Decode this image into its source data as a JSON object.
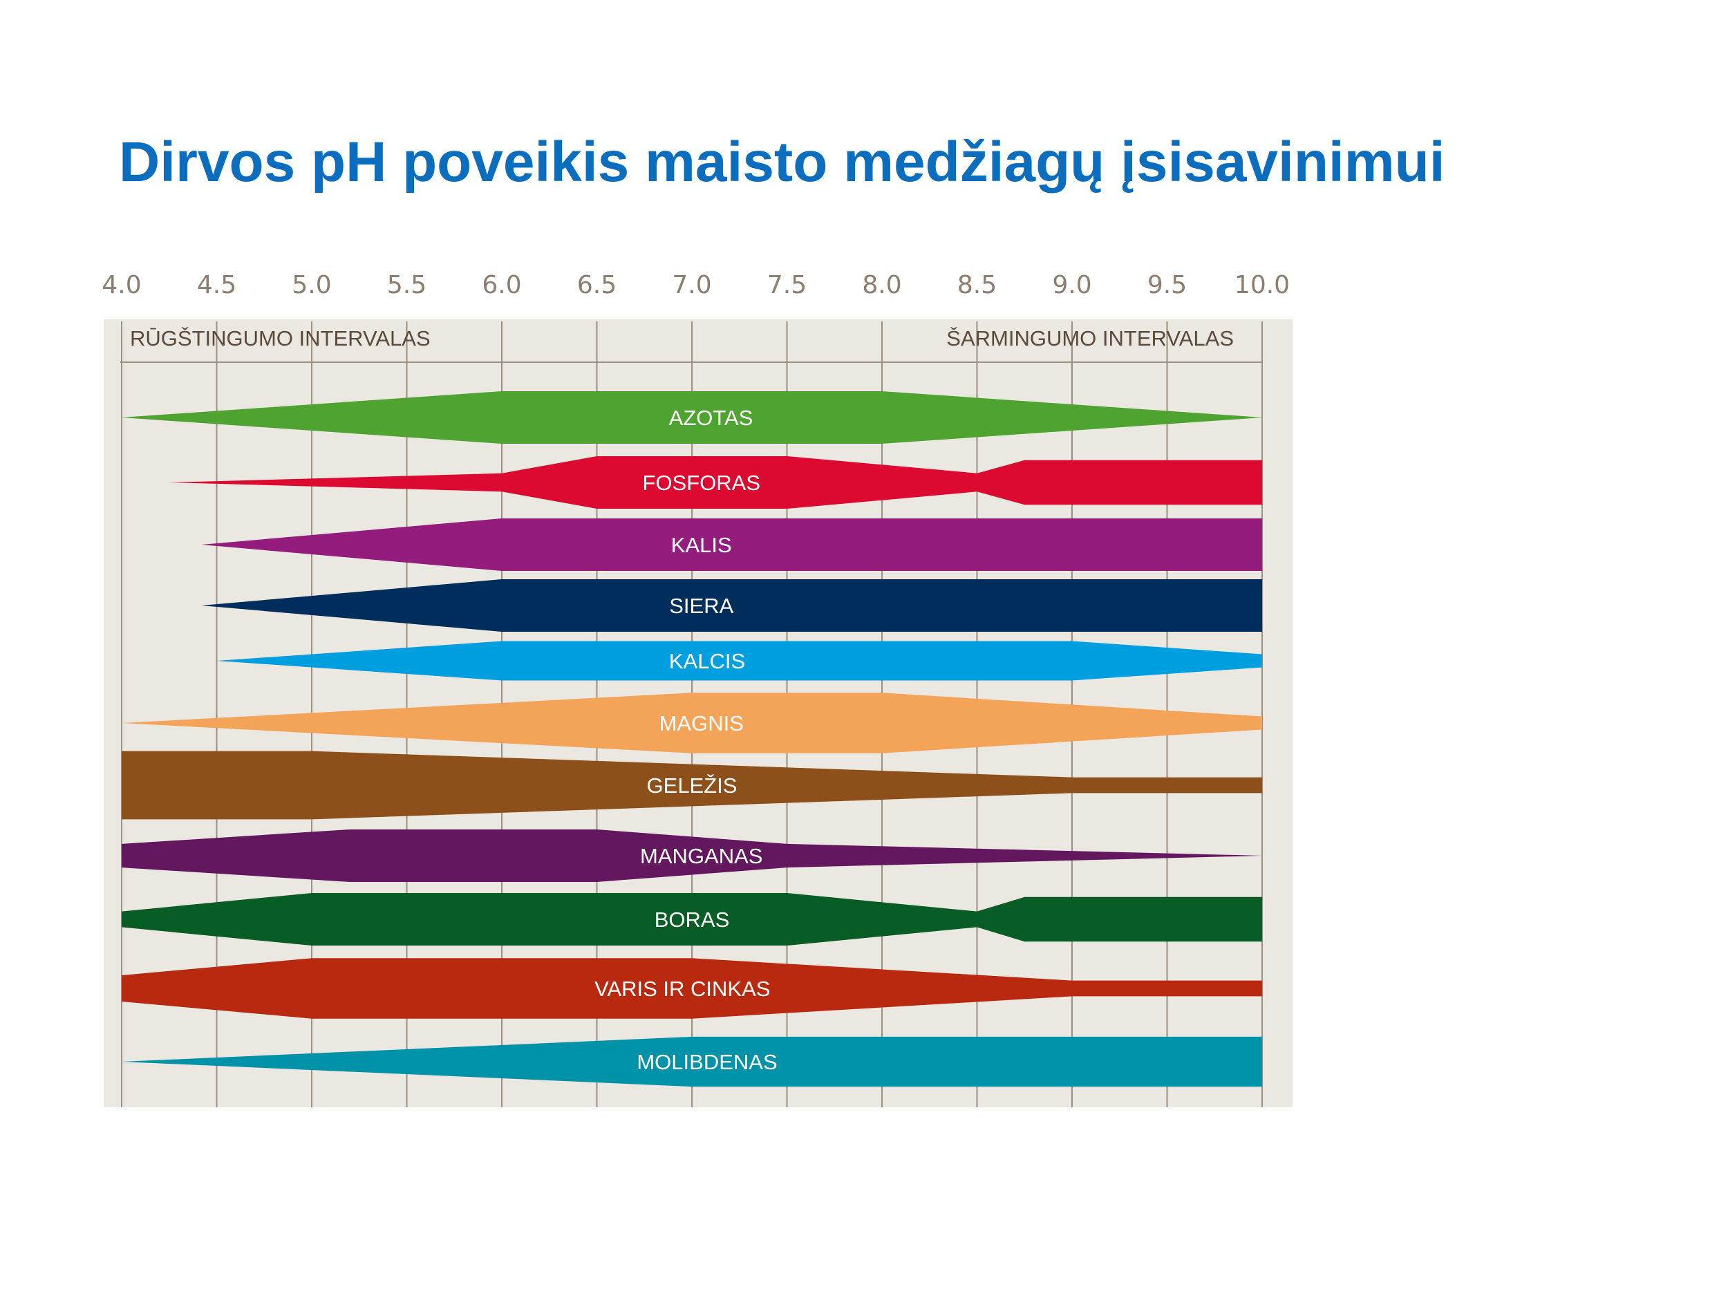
{
  "title": "Dirvos pH poveikis maisto medžiagų įsisavinimui",
  "chart_data": {
    "type": "area",
    "x_ticks": [
      "4.0",
      "4.5",
      "5.0",
      "5.5",
      "6.0",
      "6.5",
      "7.0",
      "7.5",
      "8.0",
      "8.5",
      "9.0",
      "9.5",
      "10.0"
    ],
    "xlim": [
      4.0,
      10.0
    ],
    "range_labels": {
      "acid": "RŪGŠTINGUMO INTERVALAS",
      "alkaline": "ŠARMINGUMO INTERVALAS"
    },
    "ylabel_note": "relative availability (band width)",
    "series": [
      {
        "name": "AZOTAS",
        "color": "#4fa431",
        "label_x": 7.1,
        "profile": [
          [
            4.0,
            0.0
          ],
          [
            6.0,
            1.0
          ],
          [
            8.0,
            1.0
          ],
          [
            10.0,
            0.0
          ]
        ]
      },
      {
        "name": "FOSFORAS",
        "color": "#dc0a30",
        "label_x": 7.05,
        "profile": [
          [
            4.25,
            0.0
          ],
          [
            6.0,
            0.35
          ],
          [
            6.5,
            1.0
          ],
          [
            7.5,
            1.0
          ],
          [
            8.5,
            0.35
          ],
          [
            8.75,
            0.85
          ],
          [
            10.0,
            0.85
          ]
        ]
      },
      {
        "name": "KALIS",
        "color": "#931c7c",
        "label_x": 7.05,
        "profile": [
          [
            4.42,
            0.0
          ],
          [
            6.0,
            1.0
          ],
          [
            10.0,
            1.0
          ]
        ]
      },
      {
        "name": "SIERA",
        "color": "#002e5c",
        "label_x": 7.05,
        "profile": [
          [
            4.42,
            0.0
          ],
          [
            6.0,
            1.0
          ],
          [
            10.0,
            1.0
          ]
        ]
      },
      {
        "name": "KALCIS",
        "color": "#009fe0",
        "label_x": 7.08,
        "profile": [
          [
            4.5,
            0.0
          ],
          [
            6.0,
            0.75
          ],
          [
            9.0,
            0.75
          ],
          [
            10.0,
            0.25
          ]
        ]
      },
      {
        "name": "MAGNIS",
        "color": "#f4a458",
        "label_x": 7.05,
        "profile": [
          [
            4.0,
            0.0
          ],
          [
            7.0,
            1.15
          ],
          [
            8.0,
            1.15
          ],
          [
            10.0,
            0.25
          ]
        ]
      },
      {
        "name": "GELEŽIS",
        "color": "#8e501b",
        "label_x": 7.0,
        "profile": [
          [
            4.0,
            1.3
          ],
          [
            5.0,
            1.3
          ],
          [
            9.0,
            0.3
          ],
          [
            10.0,
            0.3
          ]
        ]
      },
      {
        "name": "MANGANAS",
        "color": "#62175e",
        "label_x": 7.05,
        "profile": [
          [
            4.0,
            0.45
          ],
          [
            5.2,
            1.0
          ],
          [
            6.5,
            1.0
          ],
          [
            7.5,
            0.45
          ],
          [
            10.0,
            0.0
          ]
        ]
      },
      {
        "name": "BORAS",
        "color": "#075d24",
        "label_x": 7.0,
        "profile": [
          [
            4.0,
            0.3
          ],
          [
            5.0,
            1.0
          ],
          [
            7.5,
            1.0
          ],
          [
            8.5,
            0.3
          ],
          [
            8.75,
            0.85
          ],
          [
            10.0,
            0.85
          ]
        ]
      },
      {
        "name": "VARIS IR CINKAS",
        "color": "#b8290f",
        "label_x": 6.95,
        "profile": [
          [
            4.0,
            0.5
          ],
          [
            5.0,
            1.15
          ],
          [
            7.0,
            1.15
          ],
          [
            9.0,
            0.3
          ],
          [
            10.0,
            0.3
          ]
        ]
      },
      {
        "name": "MOLIBDENAS",
        "color": "#0092a8",
        "label_x": 7.08,
        "profile": [
          [
            4.0,
            0.0
          ],
          [
            7.0,
            0.95
          ],
          [
            10.0,
            0.95
          ]
        ]
      }
    ]
  },
  "colors": {
    "title": "#0a6dbd",
    "chart_bg": "#ebe7e1",
    "grid": "#9b8f82",
    "tick": "#8c7d6e"
  }
}
